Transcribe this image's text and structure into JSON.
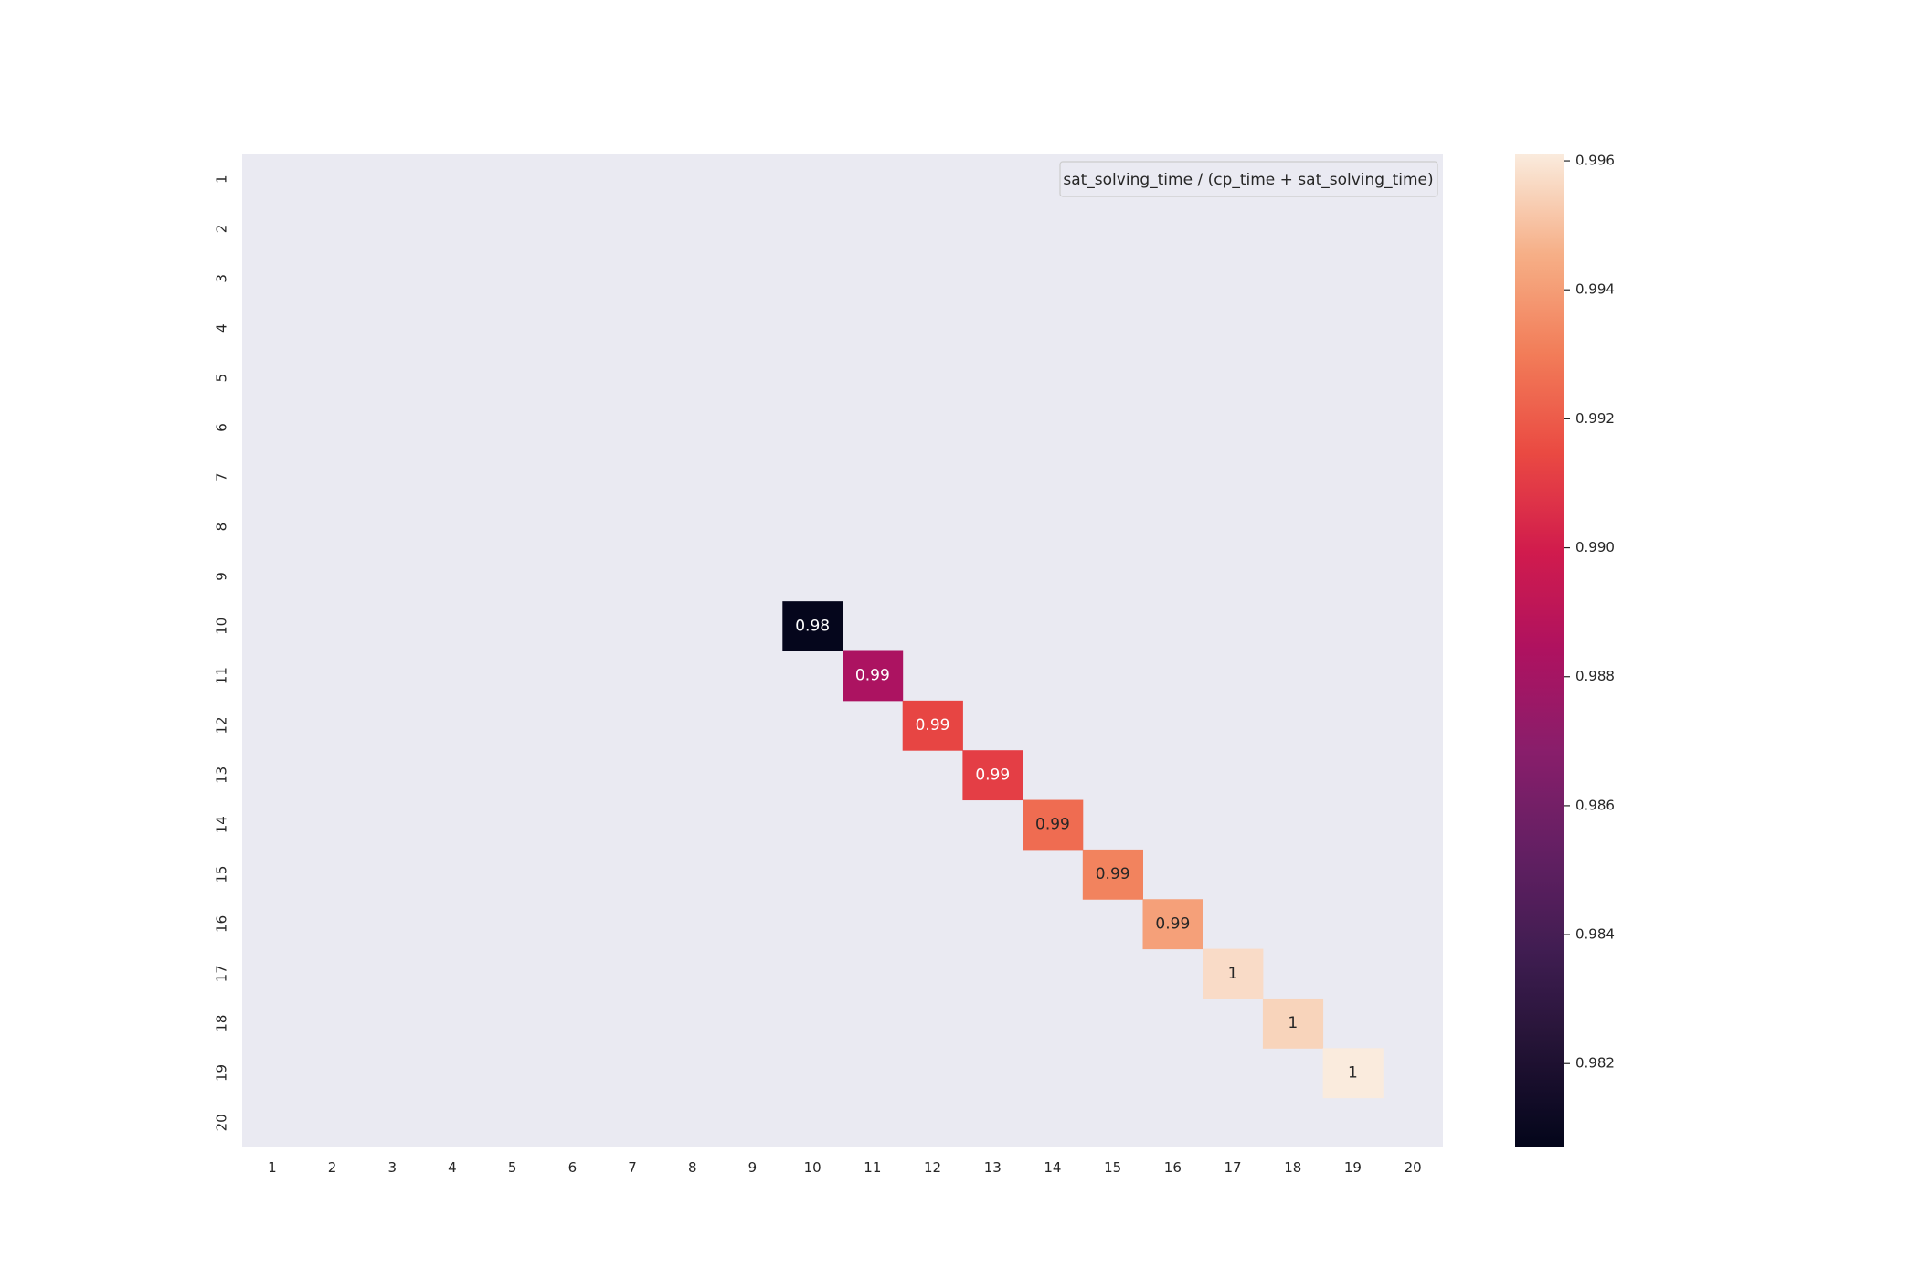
{
  "chart_data": {
    "type": "heatmap",
    "title": "",
    "xlabel": "",
    "ylabel": "",
    "x_categories": [
      "1",
      "2",
      "3",
      "4",
      "5",
      "6",
      "7",
      "8",
      "9",
      "10",
      "11",
      "12",
      "13",
      "14",
      "15",
      "16",
      "17",
      "18",
      "19",
      "20"
    ],
    "y_categories": [
      "1",
      "2",
      "3",
      "4",
      "5",
      "6",
      "7",
      "8",
      "9",
      "10",
      "11",
      "12",
      "13",
      "14",
      "15",
      "16",
      "17",
      "18",
      "19",
      "20"
    ],
    "cells": [
      {
        "x": "10",
        "y": "10",
        "value": 0.9808,
        "label": "0.98"
      },
      {
        "x": "11",
        "y": "11",
        "value": 0.9883,
        "label": "0.99"
      },
      {
        "x": "12",
        "y": "12",
        "value": 0.9913,
        "label": "0.99"
      },
      {
        "x": "13",
        "y": "13",
        "value": 0.9911,
        "label": "0.99"
      },
      {
        "x": "14",
        "y": "14",
        "value": 0.9925,
        "label": "0.99"
      },
      {
        "x": "15",
        "y": "15",
        "value": 0.9932,
        "label": "0.99"
      },
      {
        "x": "16",
        "y": "16",
        "value": 0.9941,
        "label": "0.99"
      },
      {
        "x": "17",
        "y": "17",
        "value": 0.9957,
        "label": "1"
      },
      {
        "x": "18",
        "y": "18",
        "value": 0.9955,
        "label": "1"
      },
      {
        "x": "19",
        "y": "19",
        "value": 0.9961,
        "label": "1"
      }
    ],
    "legend": {
      "label": "sat_solving_time / (cp_time + sat_solving_time)",
      "placement": "top-right"
    },
    "colorbar": {
      "colormap": "rocket",
      "range": [
        0.9807,
        0.9961
      ],
      "ticks": [
        0.982,
        0.984,
        0.986,
        0.988,
        0.99,
        0.992,
        0.994,
        0.996
      ],
      "tick_labels": [
        "0.982",
        "0.984",
        "0.986",
        "0.988",
        "0.990",
        "0.992",
        "0.994",
        "0.996"
      ]
    },
    "grid": false,
    "colors": {
      "background": "#eaeaf2"
    }
  }
}
